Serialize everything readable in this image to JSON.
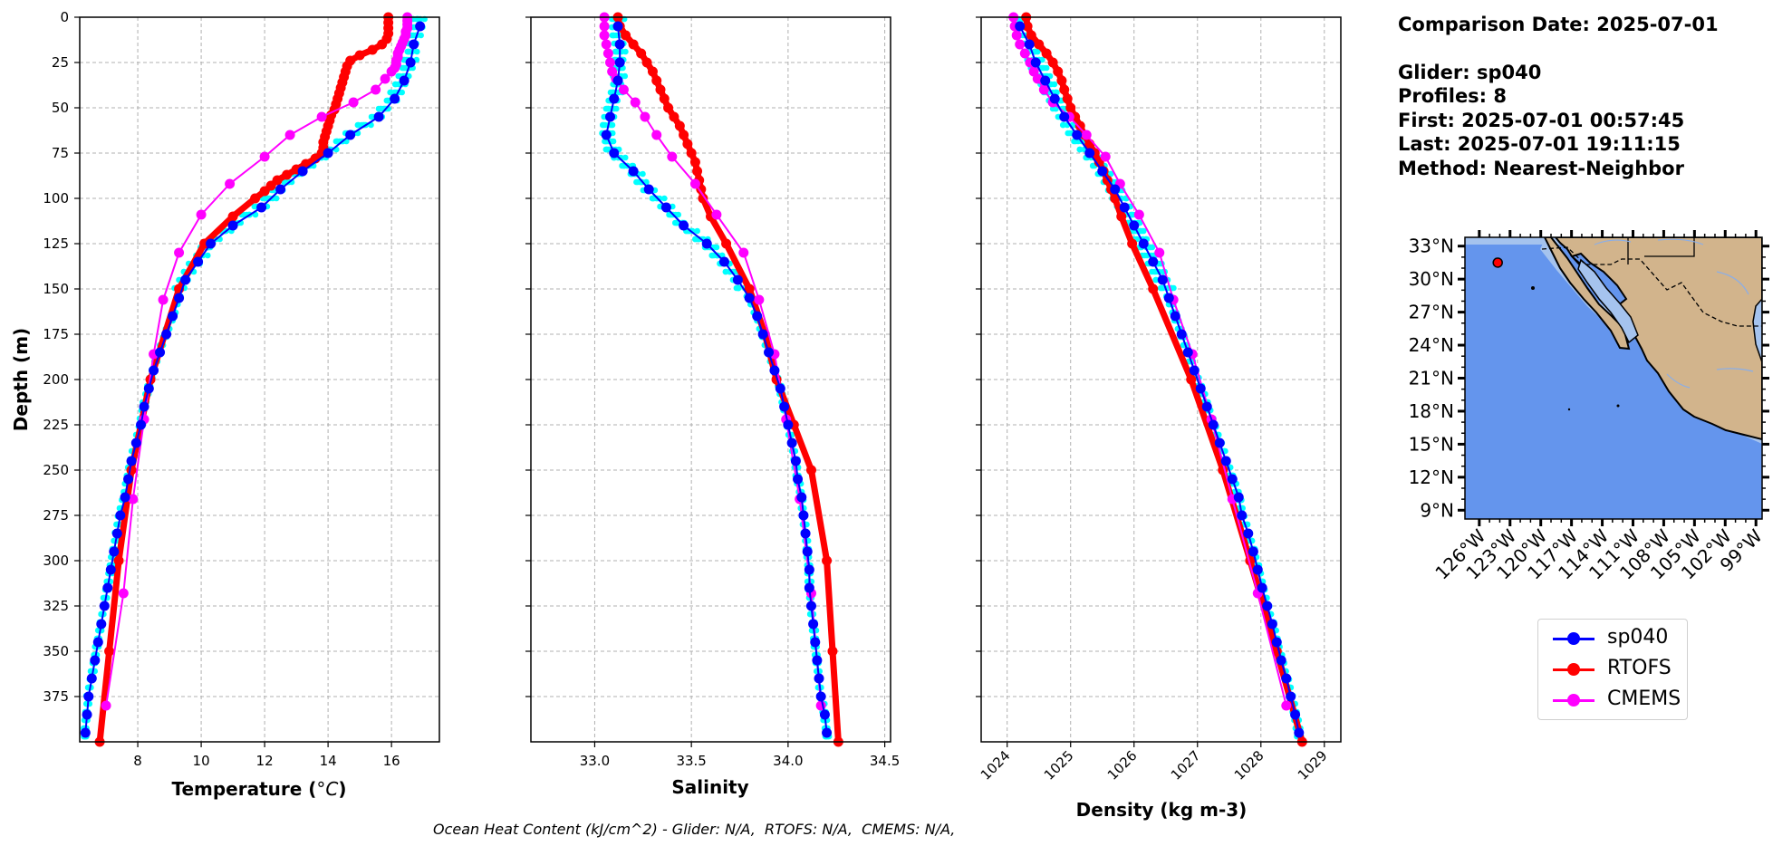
{
  "info_panel": {
    "comparison_date": "Comparison Date: 2025-07-01",
    "glider": "Glider: sp040",
    "profiles": "Profiles: 8",
    "first": "First: 2025-07-01 00:57:45",
    "last": "Last: 2025-07-01 19:11:15",
    "method": "Method: Nearest-Neighbor"
  },
  "caption": "Ocean Heat Content (kJ/cm^2) - Glider: N/A,  RTOFS: N/A,  CMEMS: N/A,",
  "legend": [
    {
      "label": "sp040",
      "color": "#0000ff"
    },
    {
      "label": "RTOFS",
      "color": "#ff0000"
    },
    {
      "label": "CMEMS",
      "color": "#ff00ff"
    }
  ],
  "colors": {
    "glider_raw": "#00ffff",
    "glider_mean": "#0000ff",
    "rtofs": "#ff0000",
    "cmems": "#ff00ff",
    "ocean": "#6495ed",
    "shelf": "#a5c3ee",
    "land": "#d2b48c"
  },
  "map": {
    "lat_ticks": [
      "33°N",
      "30°N",
      "27°N",
      "24°N",
      "21°N",
      "18°N",
      "15°N",
      "12°N",
      "9°N"
    ],
    "lat_values": [
      33,
      30,
      27,
      24,
      21,
      18,
      15,
      12,
      9
    ],
    "lon_ticks": [
      "126°W",
      "123°W",
      "120°W",
      "117°W",
      "114°W",
      "111°W",
      "108°W",
      "105°W",
      "102°W",
      "99°W"
    ],
    "lon_values": [
      -126,
      -123,
      -120,
      -117,
      -114,
      -111,
      -108,
      -105,
      -102,
      -99
    ],
    "lat_range": [
      8.2,
      33.8
    ],
    "lon_range": [
      -127.4,
      -98.4
    ],
    "glider_location": {
      "lat": 31.5,
      "lon": -124.2
    }
  },
  "chart_data": [
    {
      "type": "line",
      "id": "temperature",
      "title": "",
      "xlabel": "Temperature (°C)",
      "xlabel_main": "Temperature (",
      "xlabel_unit": "°C",
      "xlabel_end": ")",
      "ylabel": "Depth (m)",
      "xlim": [
        6.17,
        17.51
      ],
      "ylim": [
        400,
        0
      ],
      "grid": true,
      "xticks": [
        8,
        10,
        12,
        14,
        16
      ],
      "xtick_labels": [
        "8",
        "10",
        "12",
        "14",
        "16"
      ],
      "yticks": [
        0,
        25,
        50,
        75,
        100,
        125,
        150,
        175,
        200,
        225,
        250,
        275,
        300,
        325,
        350,
        375
      ],
      "series": [
        {
          "name": "sp040",
          "depth": [
            5,
            15,
            25,
            35,
            45,
            55,
            65,
            75,
            85,
            95,
            105,
            115,
            125,
            135,
            145,
            155,
            165,
            175,
            185,
            195,
            205,
            215,
            225,
            235,
            245,
            255,
            265,
            275,
            285,
            295,
            305,
            315,
            325,
            335,
            345,
            355,
            365,
            375,
            385,
            395
          ],
          "values": [
            16.9,
            16.7,
            16.6,
            16.4,
            16.1,
            15.6,
            14.7,
            14.0,
            13.2,
            12.5,
            11.9,
            11.0,
            10.3,
            9.9,
            9.5,
            9.3,
            9.1,
            8.9,
            8.7,
            8.5,
            8.35,
            8.2,
            8.1,
            7.95,
            7.8,
            7.7,
            7.6,
            7.45,
            7.35,
            7.25,
            7.15,
            7.05,
            6.95,
            6.85,
            6.75,
            6.65,
            6.55,
            6.45,
            6.4,
            6.35
          ]
        },
        {
          "name": "RTOFS",
          "depth": [
            0,
            3,
            6,
            9,
            12,
            15,
            18,
            21,
            24,
            27,
            30,
            33,
            36,
            39,
            42,
            45,
            48,
            51,
            54,
            57,
            60,
            63,
            66,
            69,
            72,
            75,
            78,
            81,
            84,
            87,
            90,
            93,
            96,
            100,
            110,
            125,
            150,
            200,
            250,
            300,
            350,
            400
          ],
          "values": [
            15.9,
            15.9,
            15.9,
            15.9,
            15.85,
            15.7,
            15.4,
            15.0,
            14.7,
            14.6,
            14.55,
            14.5,
            14.45,
            14.4,
            14.35,
            14.3,
            14.25,
            14.2,
            14.1,
            14.05,
            14.0,
            13.95,
            13.9,
            13.85,
            13.85,
            13.8,
            13.6,
            13.3,
            13.0,
            12.7,
            12.4,
            12.2,
            12.0,
            11.7,
            11.0,
            10.1,
            9.3,
            8.4,
            7.8,
            7.4,
            7.1,
            6.8
          ]
        },
        {
          "name": "CMEMS",
          "depth": [
            0,
            2,
            4,
            6,
            8,
            10,
            12,
            14,
            16,
            18,
            20,
            22,
            24,
            26,
            28,
            30,
            34,
            40,
            47,
            55,
            65,
            77,
            92,
            109,
            130,
            156,
            186,
            222,
            266,
            318,
            380
          ],
          "values": [
            16.5,
            16.5,
            16.5,
            16.5,
            16.45,
            16.45,
            16.4,
            16.35,
            16.3,
            16.25,
            16.2,
            16.2,
            16.15,
            16.15,
            16.1,
            16.0,
            15.8,
            15.5,
            14.8,
            13.8,
            12.8,
            12.0,
            10.9,
            10.0,
            9.3,
            8.8,
            8.5,
            8.2,
            7.85,
            7.55,
            7.0
          ]
        }
      ]
    },
    {
      "type": "line",
      "id": "salinity",
      "xlabel": "Salinity",
      "xlim": [
        32.67,
        34.53
      ],
      "ylim": [
        400,
        0
      ],
      "grid": true,
      "xticks": [
        33.0,
        33.5,
        34.0,
        34.5
      ],
      "xtick_labels": [
        "33.0",
        "33.5",
        "34.0",
        "34.5"
      ],
      "series": [
        {
          "name": "sp040",
          "depth": [
            5,
            15,
            25,
            35,
            45,
            55,
            65,
            75,
            85,
            95,
            105,
            115,
            125,
            135,
            145,
            155,
            165,
            175,
            185,
            195,
            205,
            215,
            225,
            235,
            245,
            255,
            265,
            275,
            285,
            295,
            305,
            315,
            325,
            335,
            345,
            355,
            365,
            375,
            385,
            395
          ],
          "values": [
            33.12,
            33.13,
            33.13,
            33.12,
            33.1,
            33.08,
            33.06,
            33.1,
            33.2,
            33.28,
            33.37,
            33.46,
            33.58,
            33.67,
            33.74,
            33.8,
            33.84,
            33.87,
            33.9,
            33.93,
            33.96,
            33.98,
            34.0,
            34.02,
            34.04,
            34.05,
            34.07,
            34.08,
            34.09,
            34.1,
            34.11,
            34.11,
            34.12,
            34.13,
            34.14,
            34.15,
            34.16,
            34.17,
            34.19,
            34.2
          ]
        },
        {
          "name": "RTOFS",
          "depth": [
            0,
            5,
            10,
            15,
            20,
            25,
            30,
            35,
            40,
            45,
            50,
            55,
            60,
            65,
            70,
            75,
            80,
            85,
            90,
            95,
            100,
            110,
            125,
            150,
            175,
            200,
            225,
            250,
            300,
            350,
            400
          ],
          "values": [
            33.12,
            33.13,
            33.16,
            33.2,
            33.24,
            33.27,
            33.3,
            33.32,
            33.34,
            33.36,
            33.38,
            33.41,
            33.44,
            33.46,
            33.48,
            33.5,
            33.52,
            33.53,
            33.54,
            33.55,
            33.56,
            33.6,
            33.68,
            33.8,
            33.88,
            33.94,
            34.03,
            34.12,
            34.2,
            34.23,
            34.26
          ]
        },
        {
          "name": "CMEMS",
          "depth": [
            0,
            5,
            10,
            15,
            20,
            25,
            30,
            34,
            40,
            47,
            55,
            65,
            77,
            92,
            109,
            130,
            156,
            186,
            222,
            266,
            318,
            380
          ],
          "values": [
            33.05,
            33.05,
            33.05,
            33.06,
            33.07,
            33.08,
            33.09,
            33.11,
            33.15,
            33.21,
            33.26,
            33.32,
            33.4,
            33.52,
            33.63,
            33.77,
            33.85,
            33.93,
            33.99,
            34.06,
            34.12,
            34.17
          ]
        }
      ]
    },
    {
      "type": "line",
      "id": "density",
      "xlabel": "Density (kg m-3)",
      "xlim": [
        1023.59,
        1029.26
      ],
      "ylim": [
        400,
        0
      ],
      "grid": true,
      "xticks": [
        1024,
        1025,
        1026,
        1027,
        1028,
        1029
      ],
      "xtick_labels": [
        "1024",
        "1025",
        "1026",
        "1027",
        "1028",
        "1029"
      ],
      "series": [
        {
          "name": "sp040",
          "depth": [
            5,
            15,
            25,
            35,
            45,
            55,
            65,
            75,
            85,
            95,
            105,
            115,
            125,
            135,
            145,
            155,
            165,
            175,
            185,
            195,
            205,
            215,
            225,
            235,
            245,
            255,
            265,
            275,
            285,
            295,
            305,
            315,
            325,
            335,
            345,
            355,
            365,
            375,
            385,
            395
          ],
          "values": [
            1024.2,
            1024.35,
            1024.45,
            1024.6,
            1024.75,
            1024.9,
            1025.1,
            1025.3,
            1025.5,
            1025.7,
            1025.85,
            1026.0,
            1026.15,
            1026.3,
            1026.45,
            1026.55,
            1026.65,
            1026.75,
            1026.85,
            1026.95,
            1027.05,
            1027.15,
            1027.25,
            1027.35,
            1027.45,
            1027.55,
            1027.65,
            1027.7,
            1027.8,
            1027.88,
            1027.95,
            1028.02,
            1028.1,
            1028.18,
            1028.25,
            1028.32,
            1028.4,
            1028.47,
            1028.54,
            1028.6
          ]
        },
        {
          "name": "RTOFS",
          "depth": [
            0,
            5,
            10,
            15,
            20,
            25,
            30,
            35,
            40,
            45,
            50,
            55,
            60,
            65,
            70,
            75,
            80,
            85,
            90,
            95,
            100,
            110,
            125,
            150,
            200,
            250,
            300,
            350,
            400
          ],
          "values": [
            1024.3,
            1024.32,
            1024.38,
            1024.5,
            1024.62,
            1024.72,
            1024.8,
            1024.86,
            1024.9,
            1024.95,
            1025.0,
            1025.07,
            1025.15,
            1025.22,
            1025.3,
            1025.38,
            1025.45,
            1025.52,
            1025.58,
            1025.64,
            1025.7,
            1025.8,
            1025.97,
            1026.3,
            1026.9,
            1027.4,
            1027.83,
            1028.25,
            1028.65
          ]
        },
        {
          "name": "CMEMS",
          "depth": [
            0,
            5,
            10,
            15,
            20,
            25,
            30,
            34,
            40,
            47,
            55,
            65,
            77,
            92,
            109,
            130,
            156,
            186,
            222,
            266,
            318,
            380
          ],
          "values": [
            1024.1,
            1024.12,
            1024.15,
            1024.2,
            1024.28,
            1024.36,
            1024.42,
            1024.48,
            1024.58,
            1024.72,
            1024.98,
            1025.25,
            1025.55,
            1025.78,
            1026.08,
            1026.4,
            1026.62,
            1026.92,
            1027.22,
            1027.55,
            1027.95,
            1028.4
          ]
        },
        {
          "name": "glider_raw",
          "note": "cyan scatter of individual glider profiles around sp040 mean"
        }
      ]
    }
  ]
}
